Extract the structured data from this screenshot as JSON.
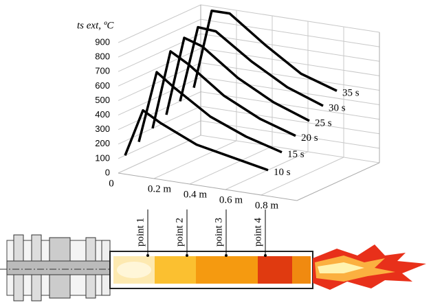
{
  "chart_data": {
    "type": "line3d",
    "ylabel": "ts ext, ºC",
    "x": [
      0,
      0.1,
      0.2,
      0.4,
      0.6,
      0.8
    ],
    "xlim": [
      0,
      1
    ],
    "xticks": [
      0,
      {
        "value": 0.2,
        "label": "0.2 m"
      },
      {
        "value": 0.4,
        "label": "0.4 m"
      },
      {
        "value": 0.6,
        "label": "0.6 m"
      },
      {
        "value": 0.8,
        "label": "0.8 m"
      }
    ],
    "ylim": [
      0,
      900
    ],
    "yticks": [
      0,
      100,
      200,
      300,
      400,
      500,
      600,
      700,
      800,
      900
    ],
    "grid": true,
    "series": [
      {
        "name": "10 s",
        "color": "#000000",
        "values": [
          100,
          430,
          360,
          250,
          200,
          150
        ]
      },
      {
        "name": "15 s",
        "color": "#000000",
        "values": [
          150,
          650,
          560,
          400,
          300,
          230
        ]
      },
      {
        "name": "20 s",
        "color": "#000000",
        "values": [
          200,
          750,
          680,
          500,
          380,
          300
        ]
      },
      {
        "name": "25 s",
        "color": "#000000",
        "values": [
          250,
          800,
          760,
          580,
          450,
          360
        ]
      },
      {
        "name": "30 s",
        "color": "#000000",
        "values": [
          300,
          830,
          820,
          650,
          510,
          420
        ]
      },
      {
        "name": "35 s",
        "color": "#000000",
        "values": [
          350,
          900,
          900,
          720,
          560,
          480
        ]
      }
    ],
    "annotations": [
      "point 1",
      "point 2",
      "point 3",
      "point 4"
    ]
  }
}
